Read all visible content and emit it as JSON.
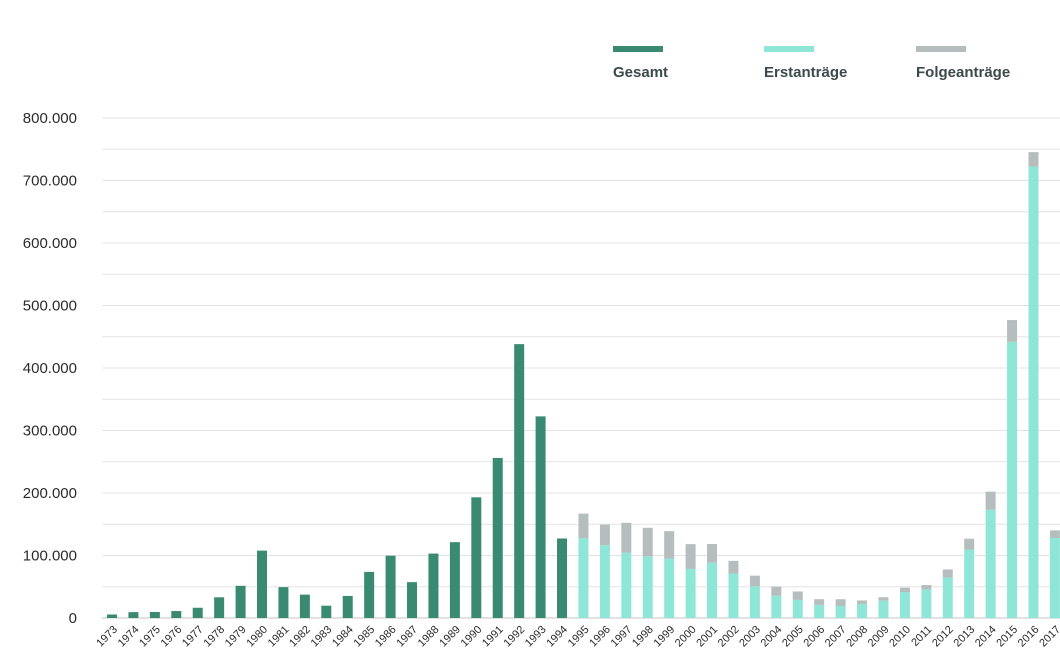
{
  "chart_data": {
    "type": "bar",
    "stacked": true,
    "ylim": [
      0,
      800000
    ],
    "y_ticks": [
      0,
      100000,
      200000,
      300000,
      400000,
      500000,
      600000,
      700000,
      800000
    ],
    "y_tick_labels": [
      "0",
      "100.000",
      "200.000",
      "300.000",
      "400.000",
      "500.000",
      "600.000",
      "700.000",
      "800.000"
    ],
    "grid": true,
    "legend_position": "top-right",
    "categories": [
      "1973",
      "1974",
      "1975",
      "1976",
      "1977",
      "1978",
      "1979",
      "1980",
      "1981",
      "1982",
      "1983",
      "1984",
      "1985",
      "1986",
      "1987",
      "1988",
      "1989",
      "1990",
      "1991",
      "1992",
      "1993",
      "1994",
      "1995",
      "1996",
      "1997",
      "1998",
      "1999",
      "2000",
      "2001",
      "2002",
      "2003",
      "2004",
      "2005",
      "2006",
      "2007",
      "2008",
      "2009",
      "2010",
      "2011",
      "2012",
      "2013",
      "2014",
      "2015",
      "2016",
      "2017"
    ],
    "series": [
      {
        "name": "Gesamt",
        "color": "#3a8a72",
        "values": [
          5600,
          9400,
          9600,
          11100,
          16400,
          33100,
          51500,
          107800,
          49400,
          37400,
          19700,
          35300,
          73800,
          99700,
          57400,
          103100,
          121300,
          193100,
          256100,
          438200,
          322600,
          127200,
          null,
          null,
          null,
          null,
          null,
          null,
          null,
          null,
          null,
          null,
          null,
          null,
          null,
          null,
          null,
          null,
          null,
          null,
          null,
          null,
          null,
          null,
          null
        ]
      },
      {
        "name": "Erstanträge",
        "color": "#8ee6d6",
        "values": [
          null,
          null,
          null,
          null,
          null,
          null,
          null,
          null,
          null,
          null,
          null,
          null,
          null,
          null,
          null,
          null,
          null,
          null,
          null,
          null,
          null,
          null,
          127900,
          116400,
          104400,
          98600,
          95100,
          78600,
          88300,
          71100,
          50600,
          35600,
          28900,
          21000,
          19200,
          22100,
          27600,
          41300,
          45700,
          64500,
          109600,
          173100,
          441900,
          722400,
          128000
        ]
      },
      {
        "name": "Folgeanträge",
        "color": "#b5bdbd",
        "values": [
          null,
          null,
          null,
          null,
          null,
          null,
          null,
          null,
          null,
          null,
          null,
          null,
          null,
          null,
          null,
          null,
          null,
          null,
          null,
          null,
          null,
          null,
          39100,
          33000,
          47900,
          45700,
          43800,
          39600,
          30100,
          20300,
          17100,
          14500,
          13500,
          9100,
          10800,
          6000,
          5600,
          7300,
          7100,
          13200,
          17200,
          29000,
          34800,
          23000,
          12200
        ]
      }
    ]
  }
}
